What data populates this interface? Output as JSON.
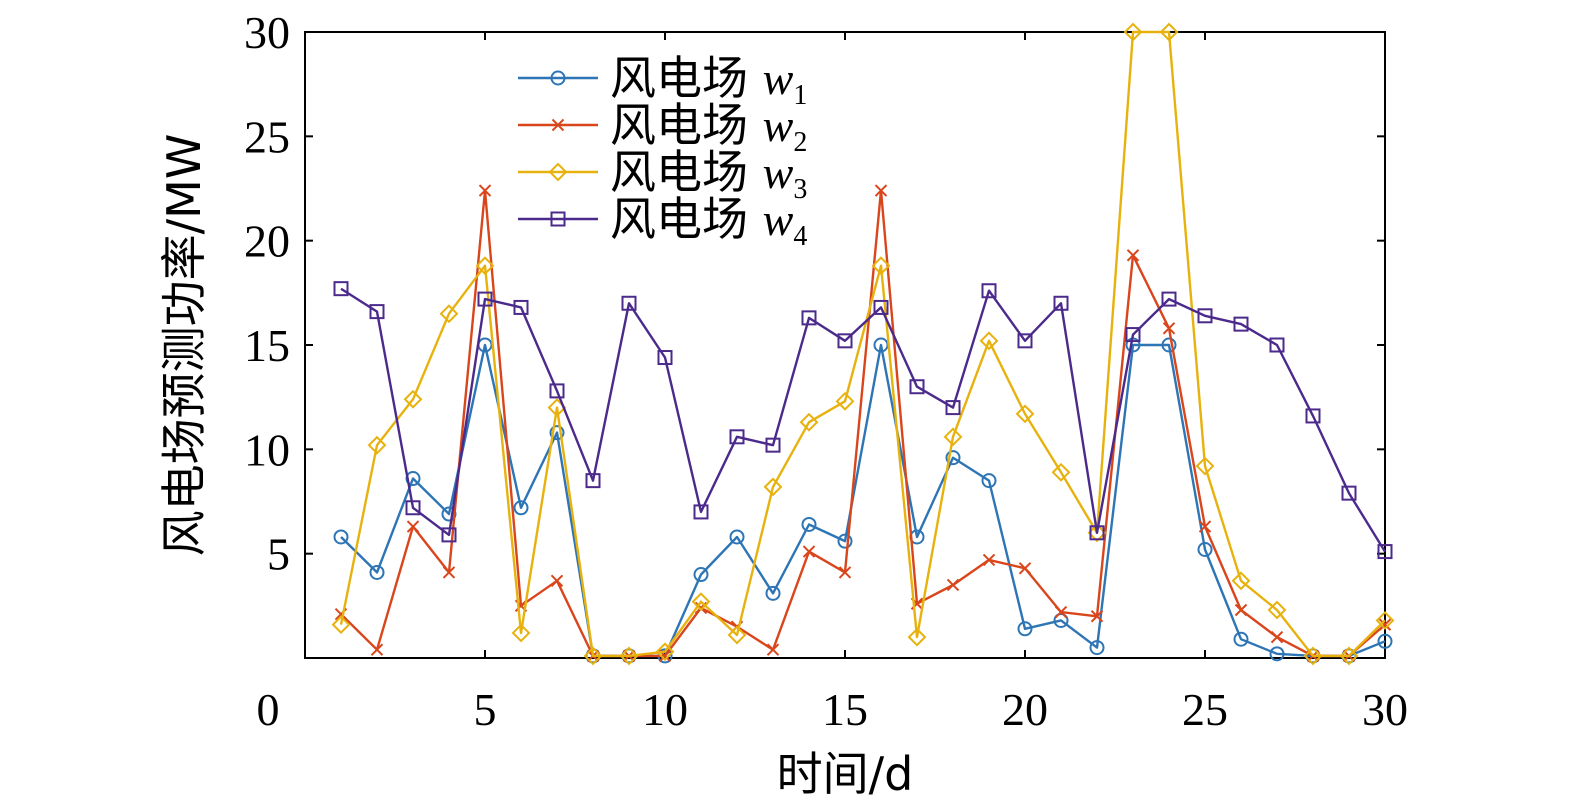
{
  "chart_data": {
    "type": "line",
    "xlabel": "时间/d",
    "ylabel": "风电场预测功率/MW",
    "xlim": [
      0,
      30
    ],
    "ylim": [
      0,
      30
    ],
    "xticks": [
      0,
      5,
      10,
      15,
      20,
      25,
      30
    ],
    "yticks": [
      5,
      10,
      15,
      20,
      25,
      30
    ],
    "x_tick_labels": [
      "0",
      "5",
      "10",
      "15",
      "20",
      "25",
      "30"
    ],
    "y_tick_labels": [
      "5",
      "10",
      "15",
      "20",
      "25",
      "30"
    ],
    "grid": false,
    "legend_position": "top-left",
    "x": [
      1,
      2,
      3,
      4,
      5,
      6,
      7,
      8,
      9,
      10,
      11,
      12,
      13,
      14,
      15,
      16,
      17,
      18,
      19,
      20,
      21,
      22,
      23,
      24,
      25,
      26,
      27,
      28,
      29,
      30
    ],
    "series": [
      {
        "name": "风电场 w",
        "sub": "1",
        "color": "#2e75b6",
        "marker": "circle",
        "values": [
          5.8,
          4.1,
          8.6,
          6.9,
          15.0,
          7.2,
          10.8,
          0.1,
          0.1,
          0.1,
          4.0,
          5.8,
          3.1,
          6.4,
          5.6,
          15.0,
          5.8,
          9.6,
          8.5,
          1.4,
          1.8,
          0.5,
          15.0,
          15.0,
          5.2,
          0.9,
          0.2,
          0.1,
          0.1,
          0.8
        ]
      },
      {
        "name": "风电场 w",
        "sub": "2",
        "color": "#d9461c",
        "marker": "cross",
        "values": [
          2.1,
          0.4,
          6.3,
          4.1,
          22.4,
          2.5,
          3.7,
          0.1,
          0.1,
          0.1,
          2.4,
          1.5,
          0.4,
          5.1,
          4.1,
          22.4,
          2.6,
          3.5,
          4.7,
          4.3,
          2.2,
          2.0,
          19.3,
          15.8,
          6.3,
          2.3,
          1.0,
          0.1,
          0.1,
          1.6
        ]
      },
      {
        "name": "风电场 w",
        "sub": "3",
        "color": "#e8b20e",
        "marker": "diamond",
        "values": [
          1.6,
          10.2,
          12.4,
          16.5,
          18.8,
          1.2,
          12.0,
          0.1,
          0.1,
          0.3,
          2.7,
          1.1,
          8.2,
          11.3,
          12.3,
          18.8,
          1.0,
          10.6,
          15.2,
          11.7,
          8.9,
          6.0,
          30.0,
          30.0,
          9.2,
          3.7,
          2.3,
          0.1,
          0.1,
          1.8
        ]
      },
      {
        "name": "风电场 w",
        "sub": "4",
        "color": "#4b2a8c",
        "marker": "square",
        "values": [
          17.7,
          16.6,
          7.2,
          5.9,
          17.2,
          16.8,
          12.8,
          8.5,
          17.0,
          14.4,
          7.0,
          10.6,
          10.2,
          16.3,
          15.2,
          16.8,
          13.0,
          12.0,
          17.6,
          15.2,
          17.0,
          6.0,
          15.5,
          17.2,
          16.4,
          16.0,
          15.0,
          11.6,
          7.9,
          5.1
        ]
      }
    ]
  }
}
